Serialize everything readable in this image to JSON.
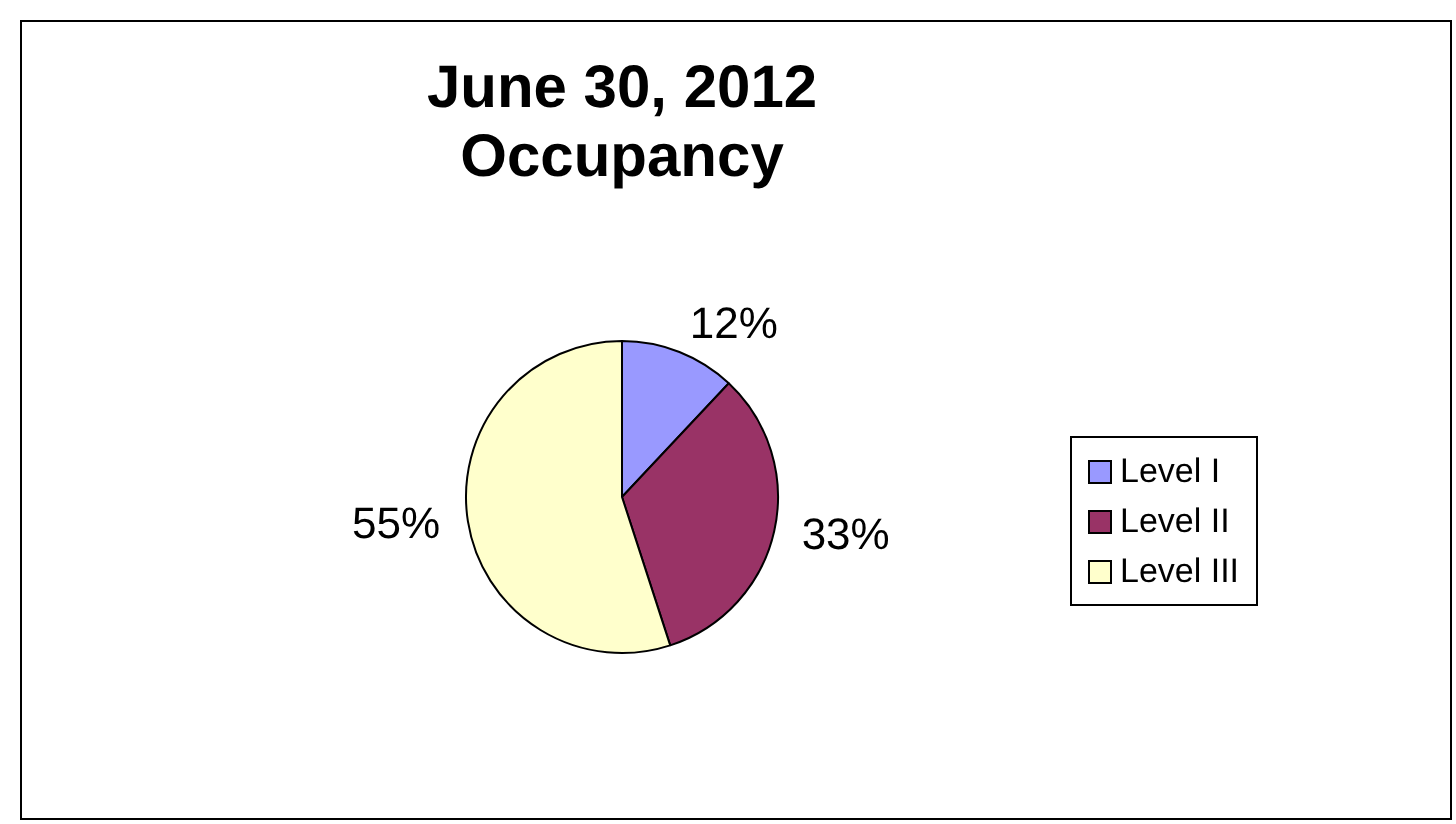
{
  "chart_data": {
    "type": "pie",
    "title": "June 30, 2012\nOccupancy",
    "categories": [
      "Level I",
      "Level II",
      "Level III"
    ],
    "values": [
      12,
      33,
      55
    ],
    "value_labels": [
      "12%",
      "33%",
      "55%"
    ],
    "colors": [
      "#9999ff",
      "#993366",
      "#ffffcc"
    ],
    "legend": "right"
  }
}
